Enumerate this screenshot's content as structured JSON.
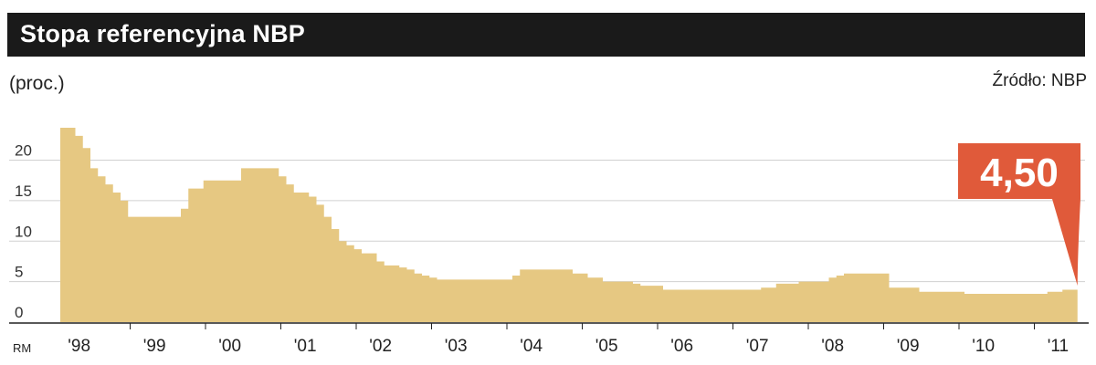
{
  "header": {
    "title": "Stopa referencyjna NBP"
  },
  "unit": "(proc.)",
  "source": "Źródło: NBP",
  "colors": {
    "area": "#e6c882",
    "grid": "#d0d0d0",
    "callout": "#e05a3a",
    "titlebar": "#1a1a1a"
  },
  "chart_data": {
    "type": "area",
    "title": "Stopa referencyjna NBP",
    "ylabel": "(proc.)",
    "xlim": [
      1998,
      2011.6
    ],
    "ylim": [
      0,
      24
    ],
    "yticks": [
      0,
      5,
      10,
      15,
      20
    ],
    "ytick_labels": [
      "0",
      "5",
      "10",
      "15",
      "20"
    ],
    "xticks": [
      1998,
      1999,
      2000,
      2001,
      2002,
      2003,
      2004,
      2005,
      2006,
      2007,
      2008,
      2009,
      2010,
      2011
    ],
    "xtick_labels": [
      "'98",
      "'99",
      "'00",
      "'01",
      "'02",
      "'03",
      "'04",
      "'05",
      "'06",
      "'07",
      "'08",
      "'09",
      "'10",
      "'11"
    ],
    "x_prefix": "RM",
    "grid": true,
    "x": [
      1998.0,
      1998.15,
      1998.2,
      1998.3,
      1998.4,
      1998.5,
      1998.6,
      1998.7,
      1998.8,
      1998.9,
      1999.0,
      1999.5,
      1999.6,
      1999.7,
      1999.8,
      1999.9,
      2000.0,
      2000.3,
      2000.4,
      2000.5,
      2000.8,
      2000.9,
      2001.0,
      2001.1,
      2001.3,
      2001.4,
      2001.5,
      2001.6,
      2001.7,
      2001.8,
      2001.9,
      2002.0,
      2002.2,
      2002.3,
      2002.5,
      2002.6,
      2002.7,
      2002.8,
      2002.9,
      2003.0,
      2003.2,
      2003.3,
      2003.5,
      2003.9,
      2004.0,
      2004.1,
      2004.6,
      2004.8,
      2005.0,
      2005.2,
      2005.6,
      2005.7,
      2006.0,
      2006.5,
      2006.7,
      2006.9,
      2007.3,
      2007.5,
      2007.8,
      2008.2,
      2008.3,
      2008.4,
      2008.6,
      2008.8,
      2009.0,
      2009.4,
      2010.0,
      2010.5,
      2011.0,
      2011.1,
      2011.3,
      2011.5
    ],
    "values": [
      24.0,
      24.0,
      23.0,
      21.5,
      19.0,
      18.0,
      17.0,
      16.0,
      15.0,
      13.0,
      13.0,
      13.0,
      14.0,
      16.5,
      16.5,
      17.5,
      17.5,
      17.5,
      19.0,
      19.0,
      19.0,
      18.0,
      17.0,
      16.0,
      15.5,
      14.5,
      13.0,
      11.5,
      10.0,
      9.5,
      9.0,
      8.5,
      7.5,
      7.0,
      6.75,
      6.5,
      6.0,
      5.75,
      5.5,
      5.25,
      5.25,
      5.25,
      5.25,
      5.25,
      5.75,
      6.5,
      6.5,
      6.0,
      5.5,
      5.0,
      4.75,
      4.5,
      4.0,
      4.0,
      4.0,
      4.0,
      4.25,
      4.75,
      5.0,
      5.5,
      5.75,
      6.0,
      6.0,
      6.0,
      4.25,
      3.75,
      3.5,
      3.5,
      3.5,
      3.75,
      4.0,
      4.5
    ],
    "annotation": {
      "label": "4,50",
      "x": 2011.5,
      "y": 4.5
    }
  }
}
